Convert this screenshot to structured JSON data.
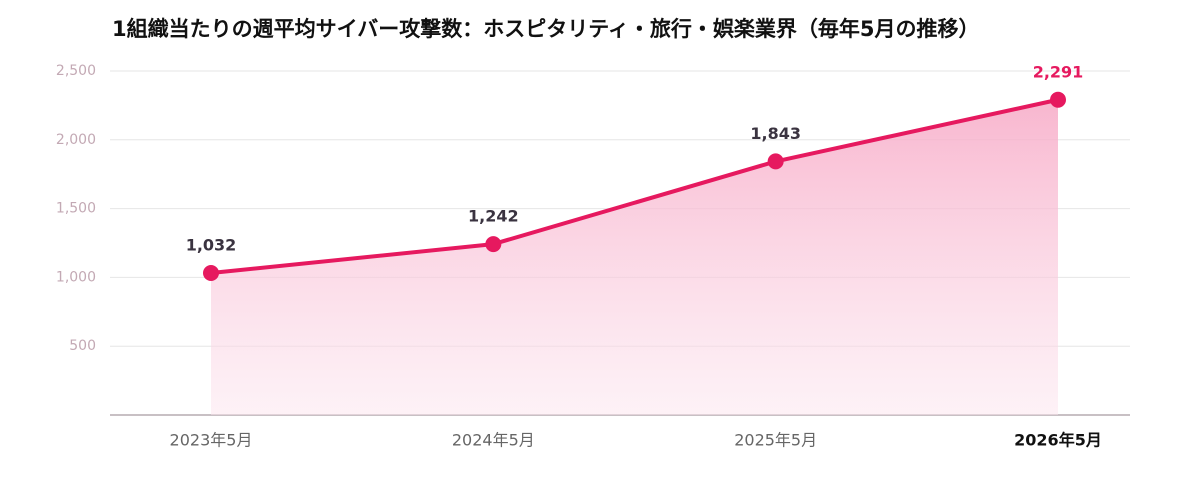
{
  "chart_data": {
    "type": "area",
    "title": "1組織当たりの週平均サイバー攻撃数：ホスピタリティ・旅行・娯楽業界（毎年5月の推移）",
    "categories": [
      "2023年5月",
      "2024年5月",
      "2025年5月",
      "2026年5月"
    ],
    "values": [
      1032,
      1242,
      1843,
      2291
    ],
    "value_labels": [
      "1,032",
      "1,242",
      "1,843",
      "2,291"
    ],
    "color": "#e6195f",
    "ylim": [
      0,
      2500
    ],
    "yticks": [
      {
        "value": 500,
        "label": "500"
      },
      {
        "value": 1000,
        "label": "1,000"
      },
      {
        "value": 1500,
        "label": "1,500"
      },
      {
        "value": 2000,
        "label": "2,000"
      },
      {
        "value": 2500,
        "label": "2,500"
      }
    ],
    "grid": true
  }
}
